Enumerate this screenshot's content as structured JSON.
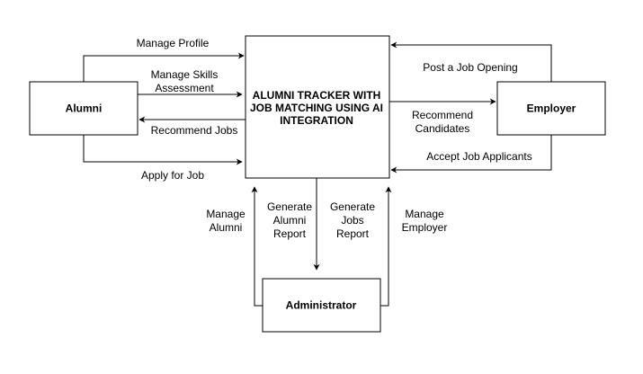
{
  "nodes": {
    "alumni": "Alumni",
    "system_line1": "ALUMNI TRACKER WITH",
    "system_line2": "JOB MATCHING USING AI",
    "system_line3": "INTEGRATION",
    "employer": "Employer",
    "administrator": "Administrator"
  },
  "edges": {
    "manage_profile": "Manage Profile",
    "manage_skills_line1": "Manage Skills",
    "manage_skills_line2": "Assessment",
    "recommend_jobs": "Recommend Jobs",
    "apply_for_job": "Apply for Job",
    "post_job_opening": "Post a Job Opening",
    "recommend_candidates_line1": "Recommend",
    "recommend_candidates_line2": "Candidates",
    "accept_applicants": "Accept Job Applicants",
    "manage_alumni_line1": "Manage",
    "manage_alumni_line2": "Alumni",
    "gen_alumni_line1": "Generate",
    "gen_alumni_line2": "Alumni",
    "gen_alumni_line3": "Report",
    "gen_jobs_line1": "Generate",
    "gen_jobs_line2": "Jobs",
    "gen_jobs_line3": "Report",
    "manage_employer_line1": "Manage",
    "manage_employer_line2": "Employer"
  }
}
